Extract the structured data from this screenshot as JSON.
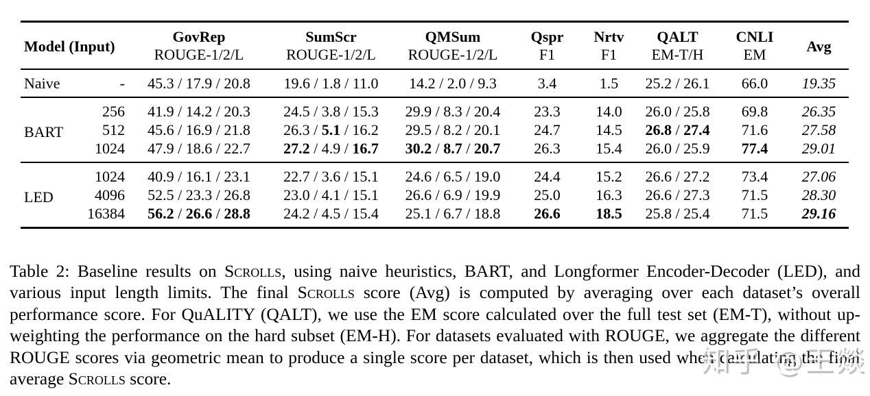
{
  "table": {
    "separator": " / ",
    "header": {
      "model_input": "Model (Input)",
      "avg": "Avg",
      "datasets": [
        {
          "title": "GovRep",
          "subtitle": "ROUGE-1/2/L"
        },
        {
          "title": "SumScr",
          "subtitle": "ROUGE-1/2/L"
        },
        {
          "title": "QMSum",
          "subtitle": "ROUGE-1/2/L"
        },
        {
          "title": "Qspr",
          "subtitle": "F1"
        },
        {
          "title": "Nrtv",
          "subtitle": "F1"
        },
        {
          "title": "QALT",
          "subtitle": "EM-T/H"
        },
        {
          "title": "CNLI",
          "subtitle": "EM"
        }
      ]
    },
    "groups": [
      {
        "model": "Naive",
        "rows": [
          {
            "input": "-",
            "cells": [
              {
                "values": [
                  "45.3",
                  "17.9",
                  "20.8"
                ]
              },
              {
                "values": [
                  "19.6",
                  "1.8",
                  "11.0"
                ]
              },
              {
                "values": [
                  "14.2",
                  "2.0",
                  "9.3"
                ]
              },
              {
                "values": [
                  "3.4"
                ]
              },
              {
                "values": [
                  "1.5"
                ]
              },
              {
                "values": [
                  "25.2",
                  "26.1"
                ]
              },
              {
                "values": [
                  "66.0"
                ]
              },
              {
                "values": [
                  "19.35"
                ],
                "italic": true
              }
            ]
          }
        ]
      },
      {
        "model": "BART",
        "rows": [
          {
            "input": "256",
            "cells": [
              {
                "values": [
                  "41.9",
                  "14.2",
                  "20.3"
                ]
              },
              {
                "values": [
                  "24.5",
                  "3.8",
                  "15.3"
                ]
              },
              {
                "values": [
                  "29.9",
                  "8.3",
                  "20.4"
                ]
              },
              {
                "values": [
                  "23.3"
                ]
              },
              {
                "values": [
                  "14.0"
                ]
              },
              {
                "values": [
                  "26.0",
                  "25.8"
                ]
              },
              {
                "values": [
                  "69.8"
                ]
              },
              {
                "values": [
                  "26.35"
                ],
                "italic": true
              }
            ]
          },
          {
            "input": "512",
            "cells": [
              {
                "values": [
                  "45.6",
                  "16.9",
                  "21.8"
                ]
              },
              {
                "values": [
                  "26.3",
                  "5.1",
                  "16.2"
                ],
                "bold": [
                  false,
                  true,
                  false
                ]
              },
              {
                "values": [
                  "29.5",
                  "8.2",
                  "20.1"
                ]
              },
              {
                "values": [
                  "24.7"
                ]
              },
              {
                "values": [
                  "14.5"
                ]
              },
              {
                "values": [
                  "26.8",
                  "27.4"
                ],
                "bold": [
                  true,
                  true
                ]
              },
              {
                "values": [
                  "71.6"
                ]
              },
              {
                "values": [
                  "27.58"
                ],
                "italic": true
              }
            ]
          },
          {
            "input": "1024",
            "cells": [
              {
                "values": [
                  "47.9",
                  "18.6",
                  "22.7"
                ]
              },
              {
                "values": [
                  "27.2",
                  "4.9",
                  "16.7"
                ],
                "bold": [
                  true,
                  false,
                  true
                ]
              },
              {
                "values": [
                  "30.2",
                  "8.7",
                  "20.7"
                ],
                "bold": [
                  true,
                  true,
                  true
                ]
              },
              {
                "values": [
                  "26.3"
                ]
              },
              {
                "values": [
                  "15.4"
                ]
              },
              {
                "values": [
                  "26.0",
                  "25.9"
                ]
              },
              {
                "values": [
                  "77.4"
                ],
                "bold": [
                  true
                ]
              },
              {
                "values": [
                  "29.01"
                ],
                "italic": true
              }
            ]
          }
        ]
      },
      {
        "model": "LED",
        "rows": [
          {
            "input": "1024",
            "cells": [
              {
                "values": [
                  "40.9",
                  "16.1",
                  "23.1"
                ]
              },
              {
                "values": [
                  "22.7",
                  "3.6",
                  "15.1"
                ]
              },
              {
                "values": [
                  "24.6",
                  "6.5",
                  "19.0"
                ]
              },
              {
                "values": [
                  "24.4"
                ]
              },
              {
                "values": [
                  "15.2"
                ]
              },
              {
                "values": [
                  "26.6",
                  "27.2"
                ]
              },
              {
                "values": [
                  "73.4"
                ]
              },
              {
                "values": [
                  "27.06"
                ],
                "italic": true
              }
            ]
          },
          {
            "input": "4096",
            "cells": [
              {
                "values": [
                  "52.5",
                  "23.3",
                  "26.8"
                ]
              },
              {
                "values": [
                  "23.0",
                  "4.1",
                  "15.1"
                ]
              },
              {
                "values": [
                  "26.6",
                  "6.9",
                  "19.9"
                ]
              },
              {
                "values": [
                  "25.0"
                ]
              },
              {
                "values": [
                  "16.3"
                ]
              },
              {
                "values": [
                  "26.6",
                  "27.3"
                ]
              },
              {
                "values": [
                  "71.5"
                ]
              },
              {
                "values": [
                  "28.30"
                ],
                "italic": true
              }
            ]
          },
          {
            "input": "16384",
            "cells": [
              {
                "values": [
                  "56.2",
                  "26.6",
                  "28.8"
                ],
                "bold": [
                  true,
                  true,
                  true
                ]
              },
              {
                "values": [
                  "24.2",
                  "4.5",
                  "15.4"
                ]
              },
              {
                "values": [
                  "25.1",
                  "6.7",
                  "18.8"
                ]
              },
              {
                "values": [
                  "26.6"
                ],
                "bold": [
                  true
                ]
              },
              {
                "values": [
                  "18.5"
                ],
                "bold": [
                  true
                ]
              },
              {
                "values": [
                  "25.8",
                  "25.4"
                ]
              },
              {
                "values": [
                  "71.5"
                ]
              },
              {
                "values": [
                  "29.16"
                ],
                "bold": [
                  true
                ],
                "italic": true
              }
            ]
          }
        ]
      }
    ]
  },
  "caption": {
    "segments": [
      {
        "text": "Table 2: Baseline results on "
      },
      {
        "text": "Scrolls",
        "smallcaps": true
      },
      {
        "text": ", using naive heuristics, BART, and Longformer Encoder-Decoder (LED), and various input length limits.  The final "
      },
      {
        "text": "Scrolls",
        "smallcaps": true
      },
      {
        "text": " score (Avg) is computed by averaging over each dataset’s overall performance score.  For QuALITY (QALT), we use the EM score calculated over the full test set (EM-T), without up-weighting the performance on the hard subset (EM-H). For datasets evaluated with ROUGE, we aggregate the different ROUGE scores via geometric mean to produce a single score per dataset, which is then used when calculating the final average "
      },
      {
        "text": "Scrolls",
        "smallcaps": true
      },
      {
        "text": " score."
      }
    ]
  },
  "watermark": {
    "text": "知乎 @王燚"
  }
}
